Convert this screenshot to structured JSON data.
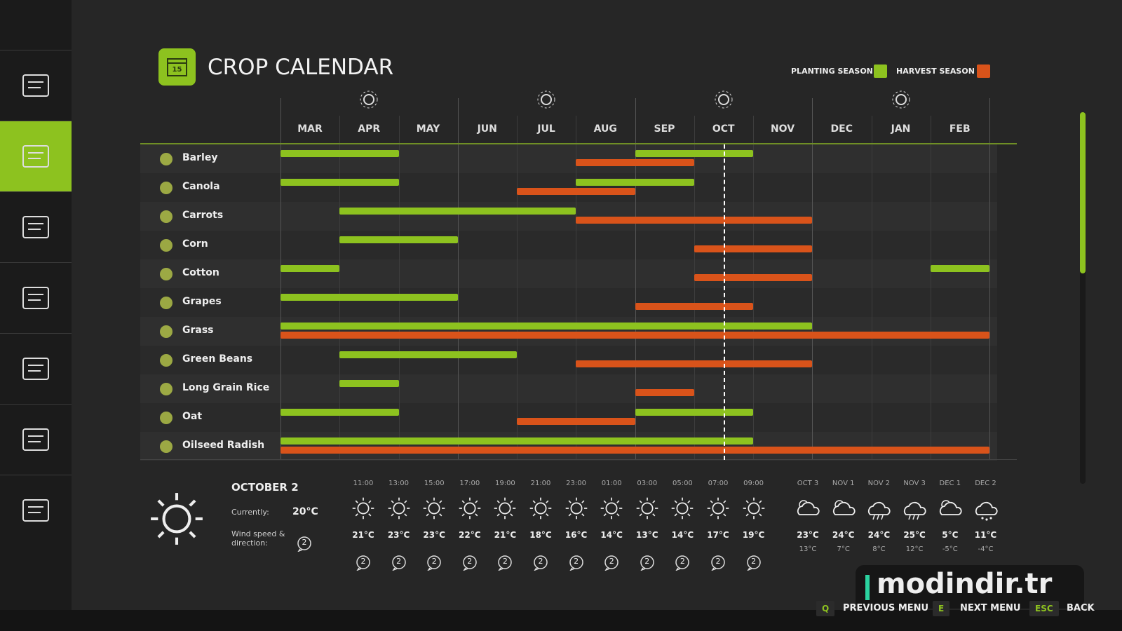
{
  "header": {
    "title": "CROP CALENDAR"
  },
  "legend": {
    "planting": "PLANTING SEASON",
    "harvest": "HARVEST SEASON"
  },
  "months": [
    "MAR",
    "APR",
    "MAY",
    "JUN",
    "JUL",
    "AUG",
    "SEP",
    "OCT",
    "NOV",
    "DEC",
    "JAN",
    "FEB"
  ],
  "today": 7.5,
  "crops": [
    {
      "name": "Barley",
      "planting": [
        [
          0,
          2
        ],
        [
          6,
          8
        ]
      ],
      "harvest": [
        [
          5,
          7
        ]
      ]
    },
    {
      "name": "Canola",
      "planting": [
        [
          0,
          2
        ],
        [
          5,
          7
        ]
      ],
      "harvest": [
        [
          4,
          6
        ]
      ]
    },
    {
      "name": "Carrots",
      "planting": [
        [
          1,
          5
        ]
      ],
      "harvest": [
        [
          5,
          9
        ]
      ]
    },
    {
      "name": "Corn",
      "planting": [
        [
          1,
          3
        ]
      ],
      "harvest": [
        [
          7,
          9
        ]
      ]
    },
    {
      "name": "Cotton",
      "planting": [
        [
          0,
          1
        ],
        [
          11,
          12
        ]
      ],
      "harvest": [
        [
          7,
          9
        ]
      ]
    },
    {
      "name": "Grapes",
      "planting": [
        [
          0,
          3
        ]
      ],
      "harvest": [
        [
          6,
          8
        ]
      ]
    },
    {
      "name": "Grass",
      "planting": [
        [
          0,
          9
        ]
      ],
      "harvest": [
        [
          0,
          12
        ]
      ]
    },
    {
      "name": "Green Beans",
      "planting": [
        [
          1,
          4
        ]
      ],
      "harvest": [
        [
          5,
          9
        ]
      ]
    },
    {
      "name": "Long Grain Rice",
      "planting": [
        [
          1,
          2
        ]
      ],
      "harvest": [
        [
          6,
          7
        ]
      ]
    },
    {
      "name": "Oat",
      "planting": [
        [
          0,
          2
        ],
        [
          6,
          8
        ]
      ],
      "harvest": [
        [
          4,
          6
        ]
      ]
    },
    {
      "name": "Oilseed Radish",
      "planting": [
        [
          0,
          8
        ]
      ],
      "harvest": [
        [
          0,
          12
        ]
      ]
    }
  ],
  "weather": {
    "date": "OCTOBER 2",
    "current_label": "Currently:",
    "current_temp": "20°C",
    "wind_label": "Wind speed & direction:",
    "wind": "2",
    "hourly": [
      {
        "time": "11:00",
        "temp": "21°C",
        "wind": "2"
      },
      {
        "time": "13:00",
        "temp": "23°C",
        "wind": "2"
      },
      {
        "time": "15:00",
        "temp": "23°C",
        "wind": "2"
      },
      {
        "time": "17:00",
        "temp": "22°C",
        "wind": "2"
      },
      {
        "time": "19:00",
        "temp": "21°C",
        "wind": "2"
      },
      {
        "time": "21:00",
        "temp": "18°C",
        "wind": "2"
      },
      {
        "time": "23:00",
        "temp": "16°C",
        "wind": "2"
      },
      {
        "time": "01:00",
        "temp": "14°C",
        "wind": "2"
      },
      {
        "time": "03:00",
        "temp": "13°C",
        "wind": "2"
      },
      {
        "time": "05:00",
        "temp": "14°C",
        "wind": "2"
      },
      {
        "time": "07:00",
        "temp": "17°C",
        "wind": "2"
      },
      {
        "time": "09:00",
        "temp": "19°C",
        "wind": "2"
      }
    ],
    "daily": [
      {
        "date": "OCT 3",
        "high": "23°C",
        "low": "13°C",
        "icon": "partly-cloudy"
      },
      {
        "date": "NOV 1",
        "high": "24°C",
        "low": "7°C",
        "icon": "partly-cloudy"
      },
      {
        "date": "NOV 2",
        "high": "24°C",
        "low": "8°C",
        "icon": "rain"
      },
      {
        "date": "NOV 3",
        "high": "25°C",
        "low": "12°C",
        "icon": "rain"
      },
      {
        "date": "DEC 1",
        "high": "5°C",
        "low": "-5°C",
        "icon": "partly-cloudy"
      },
      {
        "date": "DEC 2",
        "high": "11°C",
        "low": "-4°C",
        "icon": "snow"
      }
    ]
  },
  "footer": [
    {
      "key": "Q",
      "label": "PREVIOUS MENU"
    },
    {
      "key": "E",
      "label": "NEXT MENU"
    },
    {
      "key": "ESC",
      "label": "BACK"
    }
  ],
  "watermark": "modindir.tr"
}
